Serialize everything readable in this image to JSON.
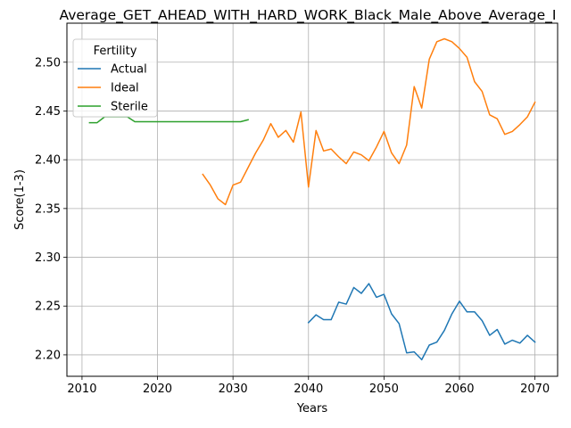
{
  "chart_data": {
    "type": "line",
    "title": "Average_GET_AHEAD_WITH_HARD_WORK_Black_Male_Above_Average_I",
    "xlabel": "Years",
    "ylabel": "Score(1-3)",
    "xlim": [
      2008,
      2073
    ],
    "ylim": [
      2.178,
      2.54
    ],
    "xticks": [
      2010,
      2020,
      2030,
      2040,
      2050,
      2060,
      2070
    ],
    "yticks": [
      2.2,
      2.25,
      2.3,
      2.35,
      2.4,
      2.45,
      2.5
    ],
    "grid": true,
    "legend": {
      "title": "Fertility",
      "placement": "upper-left"
    },
    "series": [
      {
        "name": "Actual",
        "color": "#1f77b4",
        "x": [
          2040,
          2041,
          2042,
          2043,
          2044,
          2045,
          2046,
          2047,
          2048,
          2049,
          2050,
          2051,
          2052,
          2053,
          2054,
          2055,
          2056,
          2057,
          2058,
          2059,
          2060,
          2061,
          2062,
          2063,
          2064,
          2065,
          2066,
          2067,
          2068,
          2069,
          2070
        ],
        "values": [
          2.233,
          2.241,
          2.236,
          2.236,
          2.254,
          2.252,
          2.269,
          2.263,
          2.273,
          2.259,
          2.262,
          2.242,
          2.232,
          2.202,
          2.203,
          2.195,
          2.21,
          2.213,
          2.225,
          2.242,
          2.255,
          2.244,
          2.244,
          2.235,
          2.22,
          2.226,
          2.211,
          2.215,
          2.212,
          2.22,
          2.213
        ]
      },
      {
        "name": "Ideal",
        "color": "#ff7f0e",
        "x": [
          2026,
          2027,
          2028,
          2029,
          2030,
          2031,
          2032,
          2033,
          2034,
          2035,
          2036,
          2037,
          2038,
          2039,
          2040,
          2041,
          2042,
          2043,
          2044,
          2045,
          2046,
          2047,
          2048,
          2049,
          2050,
          2051,
          2052,
          2053,
          2054,
          2055,
          2056,
          2057,
          2058,
          2059,
          2060,
          2061,
          2062,
          2063,
          2064,
          2065,
          2066,
          2067,
          2068,
          2069,
          2070
        ],
        "values": [
          2.385,
          2.374,
          2.36,
          2.354,
          2.374,
          2.377,
          2.392,
          2.407,
          2.42,
          2.437,
          2.423,
          2.43,
          2.418,
          2.449,
          2.372,
          2.43,
          2.409,
          2.411,
          2.403,
          2.396,
          2.408,
          2.405,
          2.399,
          2.413,
          2.429,
          2.407,
          2.396,
          2.415,
          2.475,
          2.453,
          2.503,
          2.521,
          2.524,
          2.521,
          2.514,
          2.505,
          2.48,
          2.47,
          2.446,
          2.442,
          2.426,
          2.429,
          2.436,
          2.444,
          2.459
        ]
      },
      {
        "name": "Sterile",
        "color": "#2ca02c",
        "x": [
          2011,
          2012,
          2013,
          2014,
          2015,
          2016,
          2017,
          2018,
          2019,
          2020,
          2021,
          2022,
          2023,
          2024,
          2025,
          2026,
          2027,
          2028,
          2029,
          2030,
          2031,
          2032
        ],
        "values": [
          2.438,
          2.438,
          2.444,
          2.444,
          2.444,
          2.444,
          2.439,
          2.439,
          2.439,
          2.439,
          2.439,
          2.439,
          2.439,
          2.439,
          2.439,
          2.439,
          2.439,
          2.439,
          2.439,
          2.439,
          2.439,
          2.441
        ]
      }
    ]
  }
}
